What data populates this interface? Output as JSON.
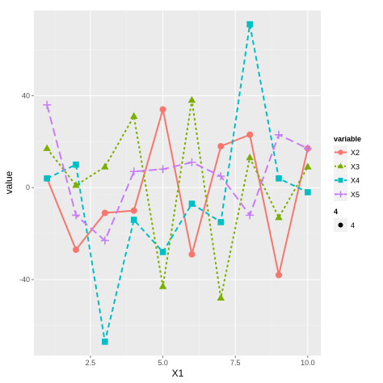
{
  "chart_data": {
    "type": "line",
    "x": [
      1,
      2,
      3,
      4,
      5,
      6,
      7,
      8,
      9,
      10
    ],
    "series": [
      {
        "name": "X2",
        "color": "#f8766d",
        "dash": "solid",
        "shape": "circle",
        "values": [
          4,
          -27,
          -11,
          -10,
          34,
          -29,
          18,
          23,
          -38,
          17
        ]
      },
      {
        "name": "X3",
        "color": "#7cae00",
        "dash": "dotted",
        "shape": "triangle",
        "values": [
          17,
          1,
          9,
          31,
          -43,
          38,
          -48,
          13,
          -13,
          9
        ]
      },
      {
        "name": "X4",
        "color": "#00bfc4",
        "dash": "dashed",
        "shape": "square",
        "values": [
          4,
          10,
          -67,
          -14,
          -28,
          -7,
          -15,
          71,
          4,
          -2
        ]
      },
      {
        "name": "X5",
        "color": "#c77cff",
        "dash": "longdash",
        "shape": "plus",
        "values": [
          36,
          -12,
          -23,
          7,
          8,
          11,
          5,
          -12,
          23,
          17
        ]
      }
    ],
    "xlabel": "X1",
    "ylabel": "value",
    "xlim": [
      0.55,
      10.45
    ],
    "ylim": [
      -73,
      77
    ],
    "xticks": [
      2.5,
      5.0,
      7.5,
      10.0
    ],
    "xtick_labels": [
      "2.5",
      "5.0",
      "7.5",
      "10.0"
    ],
    "yticks": [
      -40,
      0,
      40
    ],
    "ytick_labels": [
      "-40",
      "0",
      "40"
    ],
    "grid": true,
    "panel_background": "#ebebeb",
    "legend": {
      "position": "right",
      "color_title": "variable",
      "size_title": "4",
      "size_label": "4"
    }
  }
}
